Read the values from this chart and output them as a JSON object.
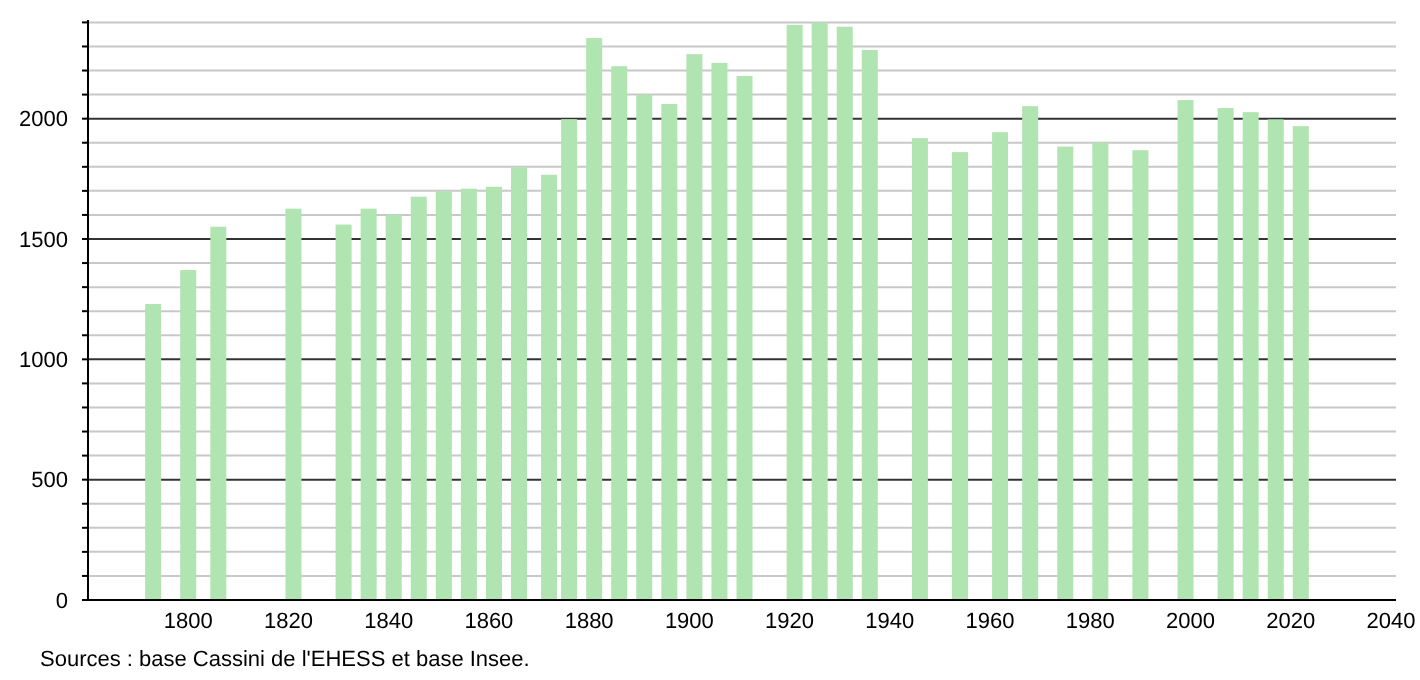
{
  "chart_data": {
    "type": "bar",
    "x": [
      1793,
      1800,
      1806,
      1821,
      1831,
      1836,
      1841,
      1846,
      1851,
      1856,
      1861,
      1866,
      1872,
      1876,
      1881,
      1886,
      1891,
      1896,
      1901,
      1906,
      1911,
      1921,
      1926,
      1931,
      1936,
      1946,
      1954,
      1962,
      1968,
      1975,
      1982,
      1990,
      1999,
      2007,
      2012,
      2017,
      2022
    ],
    "values": [
      1230,
      1371,
      1551,
      1626,
      1560,
      1626,
      1601,
      1676,
      1698,
      1709,
      1717,
      1797,
      1767,
      1998,
      2335,
      2218,
      2100,
      2061,
      2268,
      2232,
      2177,
      2390,
      2400,
      2382,
      2285,
      1919,
      1861,
      1944,
      2052,
      1884,
      1900,
      1869,
      2077,
      2044,
      2027,
      1997,
      1969
    ],
    "color": "#b0e4b0",
    "xlim": [
      1780,
      2041
    ],
    "xticks": [
      1800,
      1820,
      1840,
      1860,
      1880,
      1900,
      1920,
      1940,
      1960,
      1980,
      2000,
      2020,
      2040
    ],
    "ylim": [
      0,
      2410
    ],
    "yticks": [
      0,
      {
        "value": 100,
        "label": null
      },
      {
        "value": 200,
        "label": null
      },
      {
        "value": 300,
        "label": null
      },
      {
        "value": 400,
        "label": null
      },
      500,
      {
        "value": 600,
        "label": null
      },
      {
        "value": 700,
        "label": null
      },
      {
        "value": 800,
        "label": null
      },
      {
        "value": 900,
        "label": null
      },
      1000,
      {
        "value": 1100,
        "label": null
      },
      {
        "value": 1200,
        "label": null
      },
      {
        "value": 1300,
        "label": null
      },
      {
        "value": 1400,
        "label": null
      },
      1500,
      {
        "value": 1600,
        "label": null
      },
      {
        "value": 1700,
        "label": null
      },
      {
        "value": 1800,
        "label": null
      },
      {
        "value": 1900,
        "label": null
      },
      2000,
      {
        "value": 2100,
        "label": null
      },
      {
        "value": 2200,
        "label": null
      },
      {
        "value": 2300,
        "label": null
      },
      {
        "value": 2400,
        "label": null
      }
    ],
    "grid": true,
    "annotations": [
      "Sources : base Cassini de l'EHESS et base Insee."
    ]
  }
}
